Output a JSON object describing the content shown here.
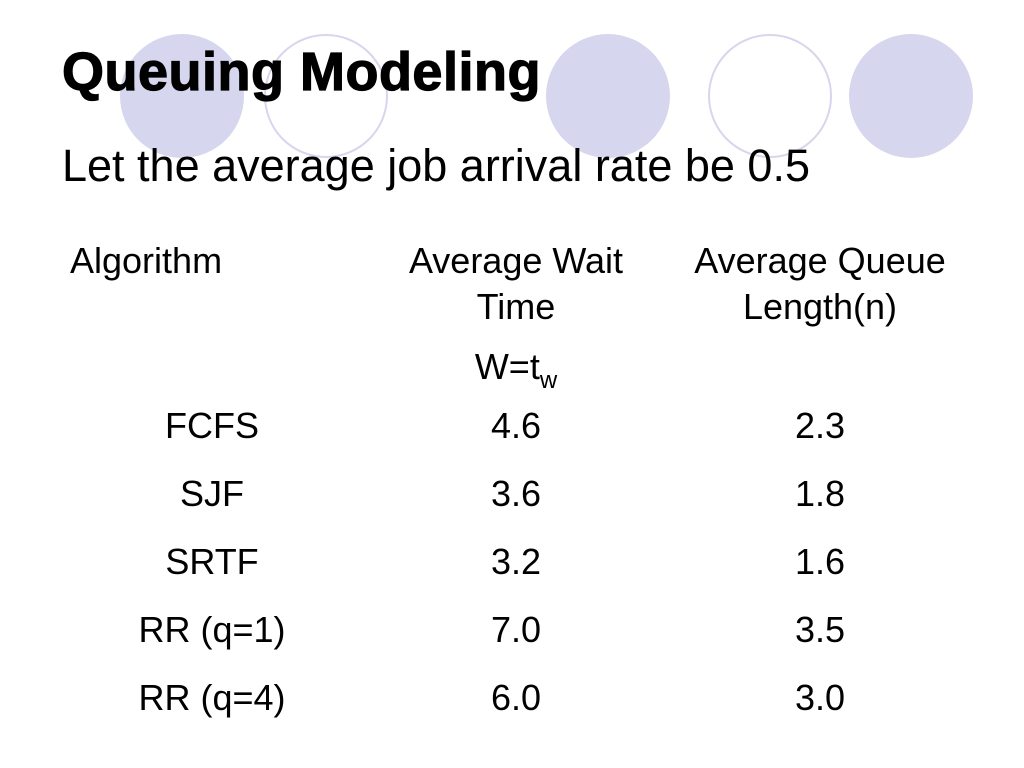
{
  "slide": {
    "title": "Queuing Modeling",
    "subtitle": "Let the average job arrival rate be 0.5",
    "accent_color": "#d6d6ee"
  },
  "table": {
    "headers": {
      "algorithm": "Algorithm",
      "wait_line1": "Average Wait",
      "wait_line2": "Time",
      "queue_line1": "Average Queue",
      "queue_line2": "Length(n)",
      "wait_formula_base": "W=t",
      "wait_formula_sub": "w"
    },
    "rows": [
      {
        "algorithm": "FCFS",
        "wait": "4.6",
        "queue": "2.3"
      },
      {
        "algorithm": "SJF",
        "wait": "3.6",
        "queue": "1.8"
      },
      {
        "algorithm": "SRTF",
        "wait": "3.2",
        "queue": "1.6"
      },
      {
        "algorithm": "RR (q=1)",
        "wait": "7.0",
        "queue": "3.5"
      },
      {
        "algorithm": "RR (q=4)",
        "wait": "6.0",
        "queue": "3.0"
      }
    ]
  }
}
